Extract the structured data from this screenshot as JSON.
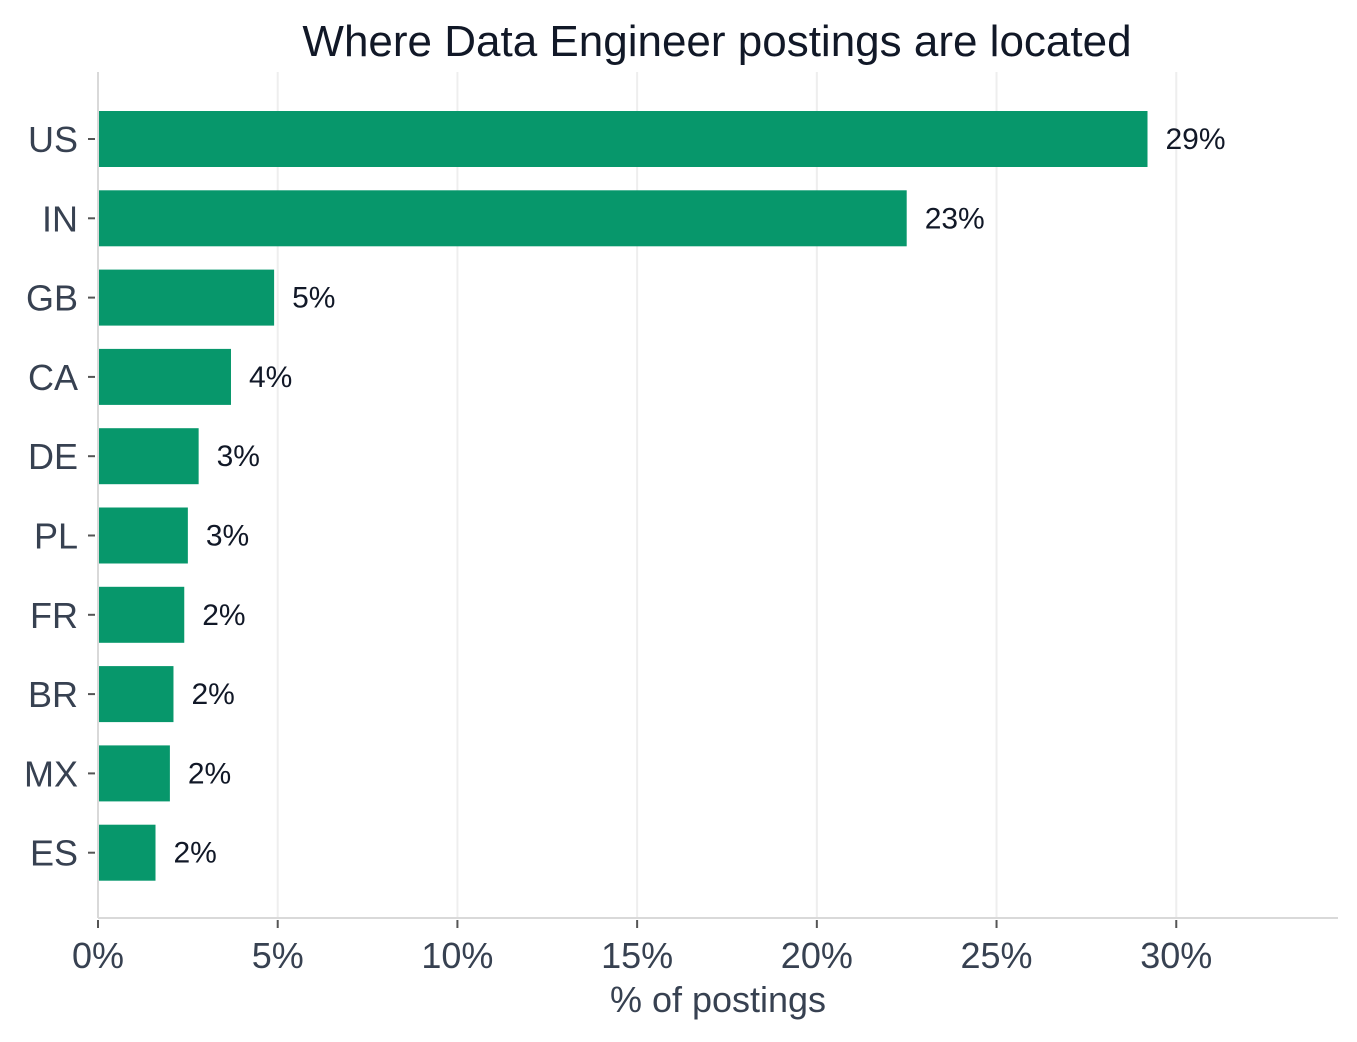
{
  "chart_data": {
    "type": "bar",
    "orientation": "horizontal",
    "title": "Where Data Engineer postings are located",
    "xlabel": "% of postings",
    "ylabel": "",
    "xlim": [
      0,
      34.5
    ],
    "xticks": [
      0,
      5,
      10,
      15,
      20,
      25,
      30
    ],
    "xtick_labels": [
      "0%",
      "5%",
      "10%",
      "15%",
      "20%",
      "25%",
      "30%"
    ],
    "grid": "vertical",
    "categories": [
      "US",
      "IN",
      "GB",
      "CA",
      "DE",
      "PL",
      "FR",
      "BR",
      "MX",
      "ES"
    ],
    "values": [
      29.2,
      22.5,
      4.9,
      3.7,
      2.8,
      2.5,
      2.4,
      2.1,
      2.0,
      1.6
    ],
    "data_labels": [
      "29%",
      "23%",
      "5%",
      "4%",
      "3%",
      "3%",
      "2%",
      "2%",
      "2%",
      "2%"
    ],
    "colors": {
      "bar": "#07976B",
      "grid": "#EEEEEE",
      "axis": "#D9D9D9",
      "tick": "#555555"
    }
  }
}
